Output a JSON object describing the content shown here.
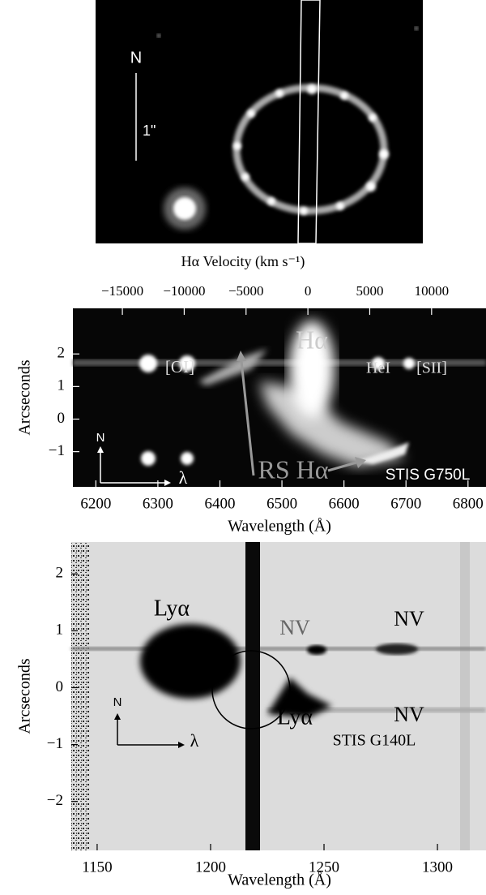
{
  "panel_a": {
    "compass": "N",
    "scale": "1\""
  },
  "panel_b": {
    "top_axis": {
      "label": "Hα Velocity (km s⁻¹)",
      "lim": [
        -19000,
        14400
      ],
      "ticks": [
        {
          "value": -15000,
          "label": "−15000"
        },
        {
          "value": -10000,
          "label": "−10000"
        },
        {
          "value": -5000,
          "label": "−5000"
        },
        0,
        5000,
        10000
      ]
    },
    "x_axis": {
      "label": "Wavelength (Å)",
      "lim": [
        6163,
        6829
      ],
      "ticks": [
        6200,
        6300,
        6400,
        6500,
        6600,
        6700,
        6800
      ]
    },
    "y_axis": {
      "label": "Arcseconds",
      "lim": [
        -2.08,
        3.4
      ],
      "ticks": [
        2,
        1,
        0,
        {
          "value": -1,
          "label": "−1"
        }
      ]
    },
    "annotations": [
      "[OI]",
      "Hα",
      "HeI",
      "[SII]",
      "RS Hα",
      "STIS G750L"
    ],
    "compass": [
      "N",
      "λ"
    ]
  },
  "panel_c": {
    "x_axis": {
      "label": "Wavelength (Å)",
      "lim": [
        1138.6,
        1321.4
      ],
      "ticks": [
        1150,
        1200,
        1250,
        1300
      ]
    },
    "y_axis": {
      "label": "Arcseconds",
      "lim": [
        -2.86,
        2.56
      ],
      "ticks": [
        2,
        1,
        0,
        {
          "value": -1,
          "label": "−1"
        },
        {
          "value": -2,
          "label": "−2"
        }
      ]
    },
    "annotations": [
      "Lyα",
      "NV",
      "NV",
      "Lyα",
      "NV",
      "STIS G140L"
    ],
    "compass": [
      "N",
      "λ"
    ]
  }
}
